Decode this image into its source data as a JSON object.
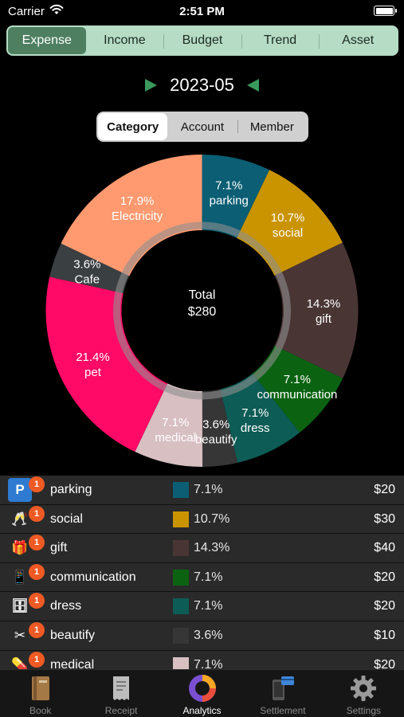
{
  "status": {
    "carrier": "Carrier",
    "time": "2:51 PM"
  },
  "main_tabs": [
    {
      "label": "Expense",
      "active": true
    },
    {
      "label": "Income"
    },
    {
      "label": "Budget"
    },
    {
      "label": "Trend"
    },
    {
      "label": "Asset"
    }
  ],
  "period": {
    "label": "2023-05"
  },
  "sub_tabs": [
    {
      "label": "Category",
      "active": true
    },
    {
      "label": "Account"
    },
    {
      "label": "Member"
    }
  ],
  "donut": {
    "center_line1": "Total",
    "center_line2": "$280"
  },
  "chart_data": {
    "type": "pie",
    "slices": [
      {
        "name": "parking",
        "percent": 7.1,
        "label": "7.1%",
        "color": "#0b5e73"
      },
      {
        "name": "social",
        "percent": 10.7,
        "label": "10.7%",
        "color": "#c99400"
      },
      {
        "name": "gift",
        "percent": 14.3,
        "label": "14.3%",
        "color": "#4a3535"
      },
      {
        "name": "communication",
        "percent": 7.1,
        "label": "7.1%",
        "color": "#0b6312"
      },
      {
        "name": "dress",
        "percent": 7.1,
        "label": "7.1%",
        "color": "#0d5c56"
      },
      {
        "name": "beautify",
        "percent": 3.6,
        "label": "3.6%",
        "color": "#363636"
      },
      {
        "name": "medical",
        "percent": 7.1,
        "label": "7.1%",
        "color": "#d7bfc2"
      },
      {
        "name": "pet",
        "percent": 21.4,
        "label": "21.4%",
        "color": "#ff0a66"
      },
      {
        "name": "Cafe",
        "percent": 3.6,
        "label": "3.6%",
        "color": "#3a3f42"
      },
      {
        "name": "Electricity",
        "percent": 17.9,
        "label": "17.9%",
        "color": "#ff9a70"
      }
    ]
  },
  "list": [
    {
      "name": "parking",
      "pct": "7.1%",
      "amount": "$20",
      "color": "#0b5e73",
      "badge": "1",
      "icon": "parking-sign-icon",
      "glyph": "P",
      "icon_bg": "#2e7bd1"
    },
    {
      "name": "social",
      "pct": "10.7%",
      "amount": "$30",
      "color": "#c99400",
      "badge": "1",
      "icon": "champagne-glasses-icon",
      "glyph": "🥂",
      "icon_bg": "transparent"
    },
    {
      "name": "gift",
      "pct": "14.3%",
      "amount": "$40",
      "color": "#4a3535",
      "badge": "1",
      "icon": "gift-box-icon",
      "glyph": "🎁",
      "icon_bg": "transparent"
    },
    {
      "name": "communication",
      "pct": "7.1%",
      "amount": "$20",
      "color": "#0b6312",
      "badge": "1",
      "icon": "phones-icon",
      "glyph": "📱",
      "icon_bg": "transparent"
    },
    {
      "name": "dress",
      "pct": "7.1%",
      "amount": "$20",
      "color": "#0d5c56",
      "badge": "1",
      "icon": "wardrobe-icon",
      "glyph": "🗄",
      "icon_bg": "transparent"
    },
    {
      "name": "beautify",
      "pct": "3.6%",
      "amount": "$10",
      "color": "#363636",
      "badge": "1",
      "icon": "scissors-icon",
      "glyph": "✂",
      "icon_bg": "transparent"
    },
    {
      "name": "medical",
      "pct": "7.1%",
      "amount": "$20",
      "color": "#d7bfc2",
      "badge": "1",
      "icon": "pills-icon",
      "glyph": "💊",
      "icon_bg": "transparent"
    }
  ],
  "tab_bar": [
    {
      "label": "Book",
      "icon": "book-icon"
    },
    {
      "label": "Receipt",
      "icon": "receipt-icon"
    },
    {
      "label": "Analytics",
      "icon": "pie-chart-icon",
      "active": true
    },
    {
      "label": "Settlement",
      "icon": "settlement-icon"
    },
    {
      "label": "Settings",
      "icon": "gear-icon"
    }
  ]
}
